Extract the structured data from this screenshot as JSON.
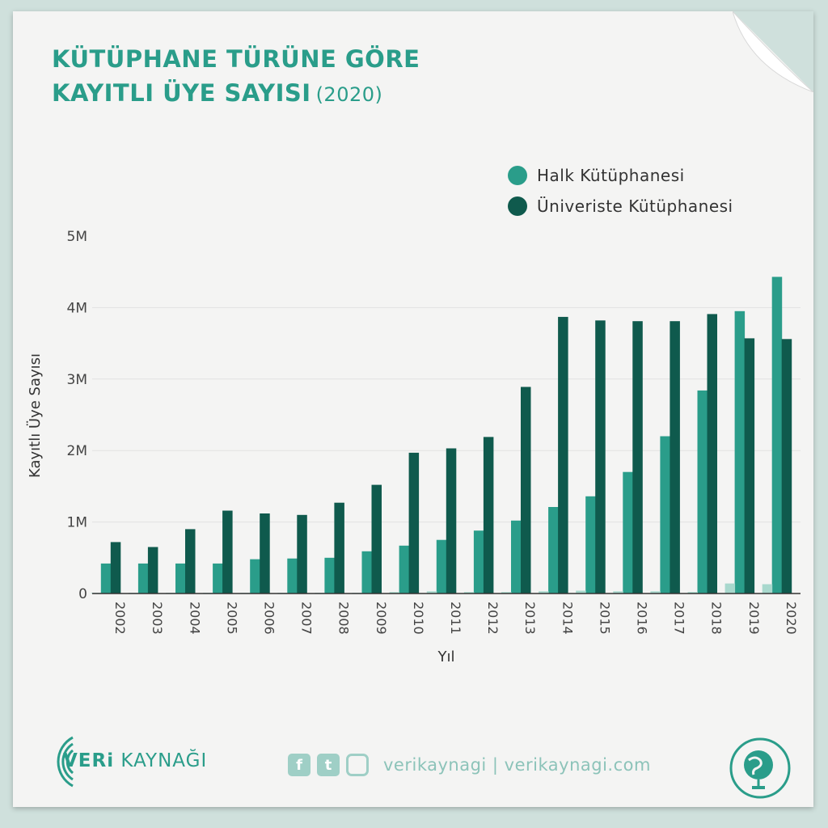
{
  "header": {
    "title_line1": "KÜTÜPHANE TÜRÜNE GÖRE",
    "title_line2": "KAYITLI ÜYE SAYISI",
    "title_year": "(2020)"
  },
  "legend": [
    {
      "label": "Halk Kütüphanesi",
      "color": "#2a9d8a"
    },
    {
      "label": "Üniveriste Kütüphanesi",
      "color": "#0f5a4d"
    }
  ],
  "chart_data": {
    "type": "bar",
    "xlabel": "Yıl",
    "ylabel": "Kayıtlı Üye Sayısı",
    "ylim": [
      0,
      5000000
    ],
    "yticks": [
      {
        "value": 0,
        "label": "0"
      },
      {
        "value": 1000000,
        "label": "1M"
      },
      {
        "value": 2000000,
        "label": "2M"
      },
      {
        "value": 3000000,
        "label": "3M"
      },
      {
        "value": 4000000,
        "label": "4M"
      },
      {
        "value": 5000000,
        "label": "5M"
      }
    ],
    "grid": true,
    "legend_position": "top-right",
    "categories": [
      "2002",
      "2003",
      "2004",
      "2005",
      "2006",
      "2007",
      "2008",
      "2009",
      "2010",
      "2011",
      "2012",
      "2013",
      "2014",
      "2015",
      "2016",
      "2017",
      "2018",
      "2019",
      "2020"
    ],
    "series": [
      {
        "name": "Halk Kütüphanesi",
        "color": "#2a9d8a",
        "values": [
          420000,
          420000,
          420000,
          420000,
          480000,
          490000,
          500000,
          590000,
          670000,
          750000,
          880000,
          1020000,
          1210000,
          1360000,
          1700000,
          2200000,
          2840000,
          3950000,
          4430000
        ]
      },
      {
        "name": "Üniveriste Kütüphanesi",
        "color": "#0f5a4d",
        "values": [
          720000,
          650000,
          900000,
          1160000,
          1120000,
          1100000,
          1270000,
          1520000,
          1970000,
          2030000,
          2190000,
          2890000,
          3870000,
          3820000,
          3810000,
          3810000,
          3910000,
          3570000,
          3560000
        ]
      },
      {
        "color": "#a8d8cd",
        "values": [
          10000,
          10000,
          10000,
          10000,
          10000,
          10000,
          10000,
          10000,
          20000,
          30000,
          20000,
          20000,
          30000,
          40000,
          30000,
          30000,
          20000,
          140000,
          130000
        ]
      }
    ]
  },
  "footer": {
    "brand_bold": "VERi",
    "brand_rest": " KAYNAĞI",
    "social_text": "verikaynagi | verikaynagi.com",
    "facebook_glyph": "f",
    "twitter_glyph": "t"
  }
}
